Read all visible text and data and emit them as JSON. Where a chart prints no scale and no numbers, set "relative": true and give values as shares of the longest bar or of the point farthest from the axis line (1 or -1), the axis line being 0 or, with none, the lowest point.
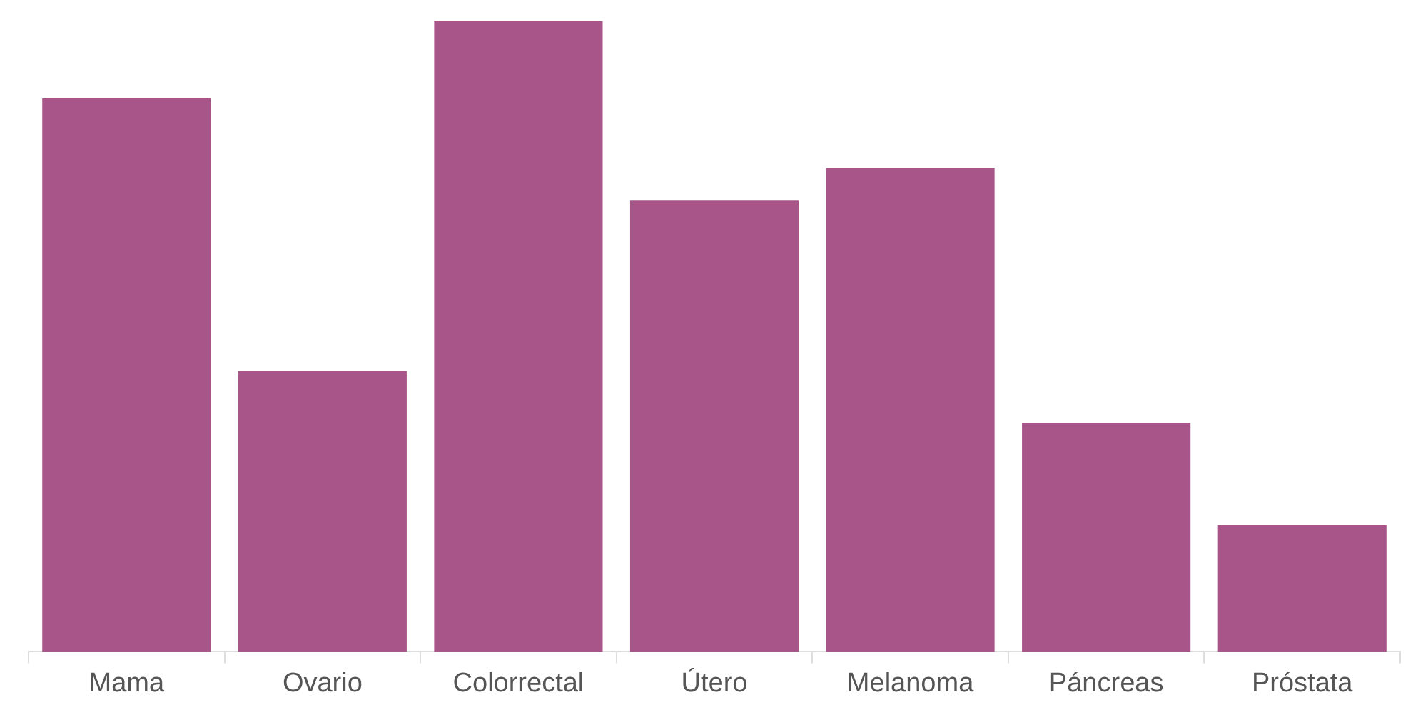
{
  "chart_data": {
    "type": "bar",
    "relative": true,
    "categories": [
      "Mama",
      "Ovario",
      "Colorrectal",
      "Útero",
      "Melanoma",
      "Páncreas",
      "Próstata"
    ],
    "values": [
      0.878,
      0.445,
      1,
      0.716,
      0.767,
      0.363,
      0.201
    ],
    "color": "#a8568a",
    "grid": false,
    "legend": false
  }
}
